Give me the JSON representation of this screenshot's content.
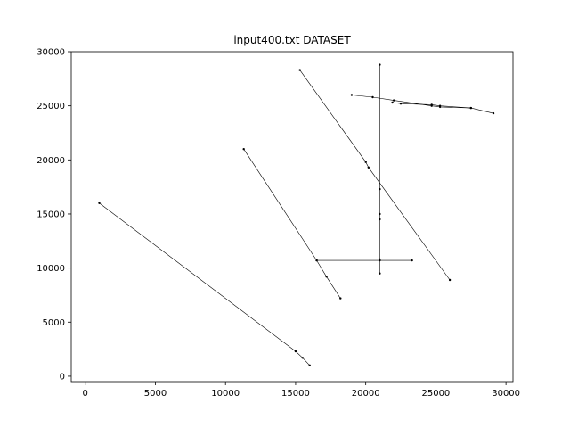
{
  "chart_data": {
    "type": "line",
    "title": "input400.txt DATASET",
    "xlabel": "",
    "ylabel": "",
    "xlim": [
      -1000,
      30500
    ],
    "ylim": [
      -500,
      30000
    ],
    "x_ticks": [
      0,
      5000,
      10000,
      15000,
      20000,
      25000,
      30000
    ],
    "y_ticks": [
      0,
      5000,
      10000,
      15000,
      20000,
      25000,
      30000
    ],
    "grid": false,
    "legend": "none",
    "line_color": "#000000",
    "series": [
      {
        "x": [
          1000,
          15000,
          15500,
          16000
        ],
        "y": [
          16000,
          2300,
          1700,
          1000
        ]
      },
      {
        "x": [
          11300,
          16500,
          17200,
          18200
        ],
        "y": [
          21000,
          10700,
          9200,
          7200
        ]
      },
      {
        "x": [
          15300,
          20000,
          20200,
          26000
        ],
        "y": [
          28300,
          19800,
          19300,
          8900
        ]
      },
      {
        "x": [
          21000,
          21000,
          21000,
          21000,
          21000,
          21000
        ],
        "y": [
          28800,
          17300,
          15000,
          14500,
          10800,
          9500
        ]
      },
      {
        "x": [
          16500,
          21000,
          23300
        ],
        "y": [
          10700,
          10700,
          10700
        ]
      },
      {
        "x": [
          19000,
          20500,
          22000,
          24700,
          25300,
          27500,
          29100
        ],
        "y": [
          26000,
          25800,
          25500,
          25000,
          24900,
          24800,
          24300
        ]
      },
      {
        "x": [
          21900,
          22500,
          24700,
          25300,
          27500
        ],
        "y": [
          25300,
          25200,
          25100,
          25000,
          24800
        ]
      }
    ]
  }
}
